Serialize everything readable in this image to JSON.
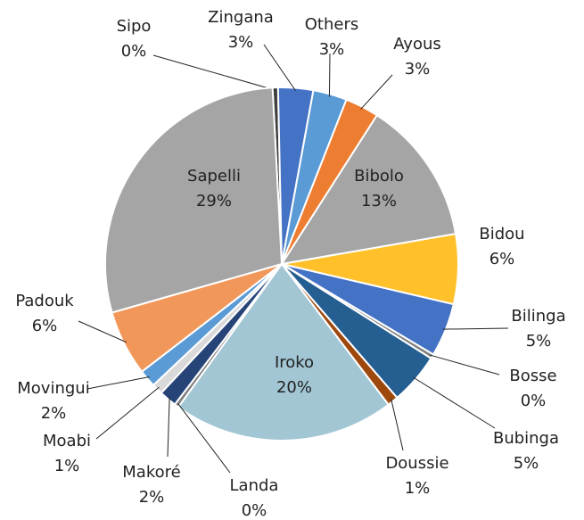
{
  "chart_data": {
    "type": "pie",
    "categories": [
      "Sipo",
      "Zingana",
      "Others",
      "Ayous",
      "Bibolo",
      "Bidou",
      "Bilinga",
      "Bosse",
      "Bubinga",
      "Doussie",
      "Iroko",
      "Landa",
      "Makoré",
      "Moabi",
      "Movingui",
      "Padouk",
      "Sapelli"
    ],
    "values": [
      0.5,
      3.2,
      3.1,
      3.1,
      13.2,
      6.4,
      4.9,
      0.4,
      4.7,
      1.0,
      20.3,
      0.4,
      1.6,
      1.0,
      1.6,
      6.0,
      28.6
    ],
    "value_labels": [
      "0%",
      "3%",
      "3%",
      "3%",
      "13%",
      "6%",
      "5%",
      "0%",
      "5%",
      "1%",
      "20%",
      "0%",
      "2%",
      "1%",
      "2%",
      "6%",
      "29%"
    ],
    "colors": [
      "#404040",
      "#4472c4",
      "#5b9bd5",
      "#ed7d31",
      "#a5a5a5",
      "#ffc02a",
      "#4472c4",
      "#7f7f7f",
      "#255e91",
      "#9e480e",
      "#a2c6d4",
      "#7f7f7f",
      "#264478",
      "#d9d9d9",
      "#5b9bd5",
      "#f1975a",
      "#a5a5a5"
    ]
  }
}
